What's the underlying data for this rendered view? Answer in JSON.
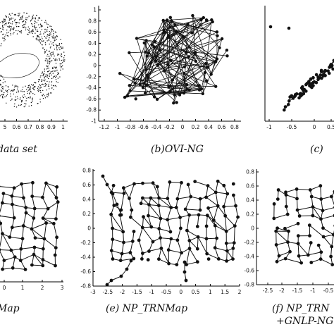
{
  "captions": {
    "a": "data set",
    "b": "(b)OVI-NG",
    "c": "(c)",
    "d": "Map",
    "e": "(e) NP_TRNMap",
    "f_line1": "(f) NP_TRN",
    "f_line2": "+GNLP-NG"
  },
  "colors": {
    "ink": "#111111",
    "axis": "#000000"
  },
  "chart_data": [
    {
      "panel": "a",
      "type": "scatter",
      "x_ticks": [
        "5",
        "0.6",
        "0.7",
        "0.8",
        "0.9",
        "1"
      ],
      "xlim": [
        0.45,
        1.0
      ]
    },
    {
      "panel": "b",
      "type": "scatter",
      "x_ticks": [
        "-1.2",
        "-1",
        "-0.8",
        "-0.6",
        "-0.4",
        "-0.2",
        "0",
        "0.2",
        "0.4",
        "0.6",
        "0.8"
      ],
      "y_ticks": [
        "-1",
        "-0.8",
        "-0.6",
        "-0.4",
        "-0.2",
        "0",
        "0.2",
        "0.4",
        "0.6",
        "0.8",
        "1"
      ],
      "xlim": [
        -1.2,
        0.8
      ],
      "ylim": [
        -1,
        1
      ]
    },
    {
      "panel": "c",
      "type": "scatter",
      "x_ticks": [
        "-1",
        "-0.5",
        "0",
        "0.5"
      ],
      "xlim": [
        -1,
        0.8
      ]
    },
    {
      "panel": "d",
      "type": "scatter",
      "x_ticks": [
        "0",
        "1",
        "2",
        "3"
      ],
      "xlim": [
        0,
        3
      ]
    },
    {
      "panel": "e",
      "type": "scatter",
      "x_ticks": [
        "-3",
        "-2.5",
        "-2",
        "-1.5",
        "-1",
        "-0.5",
        "0",
        "0.5",
        "1",
        "1.5",
        "2"
      ],
      "y_ticks": [
        "-0.8",
        "-0.6",
        "-0.4",
        "-0.2",
        "0",
        "0.2",
        "0.4",
        "0.6",
        "0.8"
      ],
      "xlim": [
        -3,
        2
      ],
      "ylim": [
        -0.8,
        0.8
      ]
    },
    {
      "panel": "f",
      "type": "scatter",
      "x_ticks": [
        "-2.5",
        "-2",
        "-1.5",
        "-1",
        "-0.5"
      ],
      "y_ticks": [
        "0.8",
        "0.6",
        "0.4",
        "0.2",
        "0",
        "-0.2",
        "-0.4",
        "-0.6",
        "-0.8"
      ],
      "xlim": [
        -2.5,
        -0.3
      ],
      "ylim": [
        -0.8,
        0.8
      ]
    }
  ]
}
